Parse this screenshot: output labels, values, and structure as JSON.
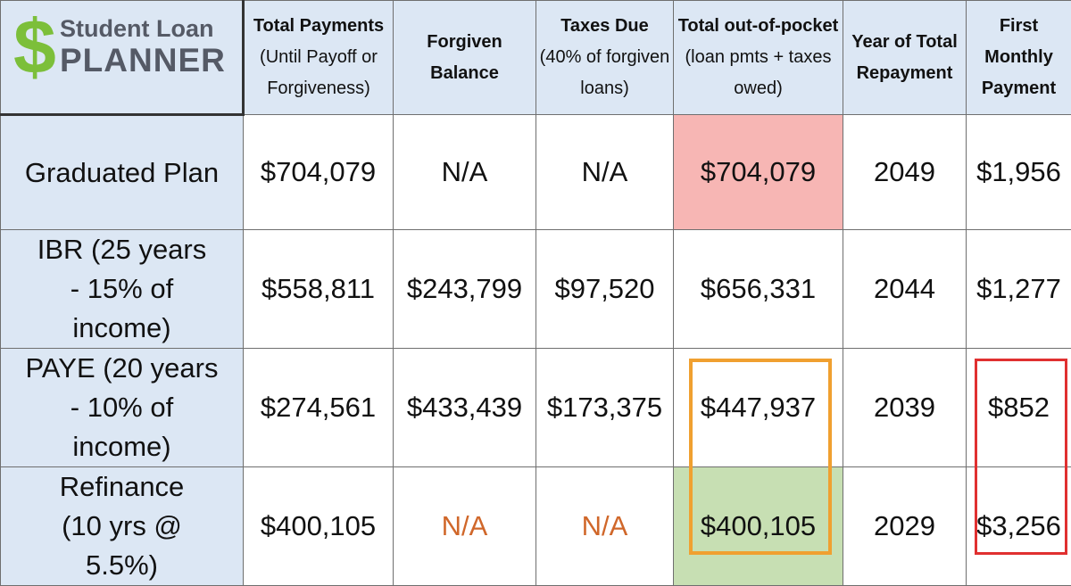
{
  "logo": {
    "symbol": "$",
    "line1": "Student Loan",
    "line2": "PLANNER"
  },
  "headers": [
    {
      "bold": "Total Payments",
      "rest": "(Until Payoff or Forgiveness)"
    },
    {
      "bold": "Forgiven Balance",
      "rest": ""
    },
    {
      "bold": "Taxes Due",
      "rest": "(40% of forgiven loans)"
    },
    {
      "bold": "Total out-of-pocket",
      "rest": "(loan pmts + taxes owed)"
    },
    {
      "bold": "Year of Total Repayment",
      "rest": ""
    },
    {
      "bold": "First Monthly Payment",
      "rest": ""
    }
  ],
  "rows": [
    {
      "label": "Graduated Plan",
      "cells": [
        "$704,079",
        "N/A",
        "N/A",
        "$704,079",
        "2049",
        "$1,956"
      ]
    },
    {
      "label": "IBR (25 years - 15% of income)",
      "cells": [
        "$558,811",
        "$243,799",
        "$97,520",
        "$656,331",
        "2044",
        "$1,277"
      ]
    },
    {
      "label": "PAYE (20 years - 10% of income)",
      "cells": [
        "$274,561",
        "$433,439",
        "$173,375",
        "$447,937",
        "2039",
        "$852"
      ]
    },
    {
      "label": "Refinance (10 yrs @ 5.5%)",
      "cells": [
        "$400,105",
        "N/A",
        "N/A",
        "$400,105",
        "2029",
        "$3,256"
      ]
    }
  ],
  "colors": {
    "header_bg": "#dce7f4",
    "logo_green": "#7cbf3a",
    "logo_gray": "#555a66",
    "highlight_red_fill": "#f7b6b4",
    "highlight_green_fill": "#c7dfb3",
    "na_orange": "#d0672a",
    "box_orange": "#f0a030",
    "box_red": "#e03030"
  }
}
